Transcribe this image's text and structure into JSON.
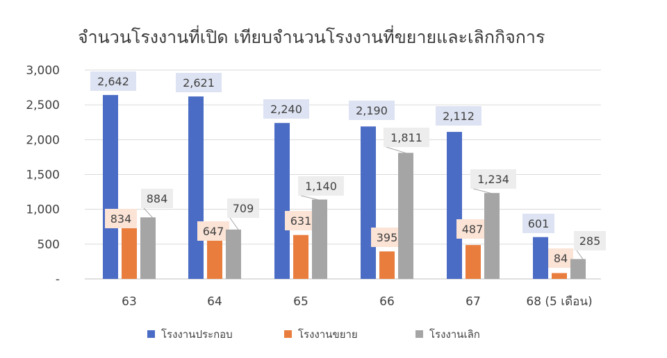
{
  "chart_data": {
    "type": "bar",
    "title": "จำนวนโรงงานที่เปิด เทียบจำนวนโรงงานที่ขยายและเลิกกิจการ",
    "categories": [
      "63",
      "64",
      "65",
      "66",
      "67",
      "68 (5 เดือน)"
    ],
    "series": [
      {
        "name": "โรงงานประกอบ",
        "values": [
          2642,
          2621,
          2240,
          2190,
          2112,
          601
        ],
        "labels": [
          "2,642",
          "2,621",
          "2,240",
          "2,190",
          "2,112",
          "601"
        ],
        "color": "#4a6cc4",
        "label_bg": "#dde3f2"
      },
      {
        "name": "โรงงานขยาย",
        "values": [
          834,
          647,
          631,
          395,
          487,
          84
        ],
        "labels": [
          "834",
          "647",
          "631",
          "395",
          "487",
          "84"
        ],
        "color": "#e87d3e",
        "label_bg": "#fbe3d6"
      },
      {
        "name": "โรงงานเลิก",
        "values": [
          884,
          709,
          1140,
          1811,
          1234,
          285
        ],
        "labels": [
          "884",
          "709",
          "1,140",
          "1,811",
          "1,234",
          "285"
        ],
        "color": "#a5a5a5",
        "label_bg": "#ededed"
      }
    ],
    "ylim": [
      0,
      3000
    ],
    "yticks": [
      0,
      500,
      1000,
      1500,
      2000,
      2500,
      3000
    ],
    "ytick_labels": [
      "-",
      "500",
      "1,000",
      "1,500",
      "2,000",
      "2,500",
      "3,000"
    ],
    "grid": true,
    "legend_position": "bottom"
  }
}
